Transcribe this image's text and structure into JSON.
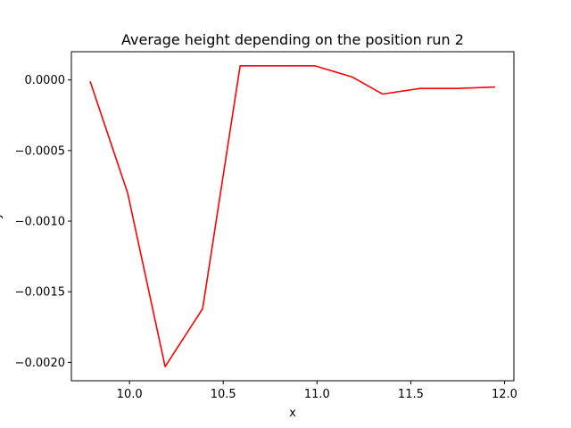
{
  "chart_data": {
    "type": "line",
    "title": "Average height depending on the position run 2",
    "xlabel": "x",
    "ylabel": "y",
    "xlim": [
      9.69,
      12.05
    ],
    "ylim": [
      -0.00213,
      0.0002
    ],
    "xticks": [
      10.0,
      10.5,
      11.0,
      11.5,
      12.0
    ],
    "xtick_labels": [
      "10.0",
      "10.5",
      "11.0",
      "11.5",
      "12.0"
    ],
    "yticks": [
      0.0,
      -0.0005,
      -0.001,
      -0.0015,
      -0.002
    ],
    "ytick_labels": [
      "0.0000",
      "−0.0005",
      "−0.0010",
      "−0.0015",
      "−0.0020"
    ],
    "grid": false,
    "series": [
      {
        "color": "#ff0000",
        "x": [
          9.79,
          9.99,
          10.19,
          10.39,
          10.59,
          10.79,
          10.99,
          11.19,
          11.35,
          11.55,
          11.75,
          11.95
        ],
        "y": [
          -1e-05,
          -0.0008,
          -0.00203,
          -0.00162,
          0.0001,
          0.0001,
          0.0001,
          2e-05,
          -0.0001,
          -6e-05,
          -6e-05,
          -5e-05
        ]
      }
    ]
  }
}
